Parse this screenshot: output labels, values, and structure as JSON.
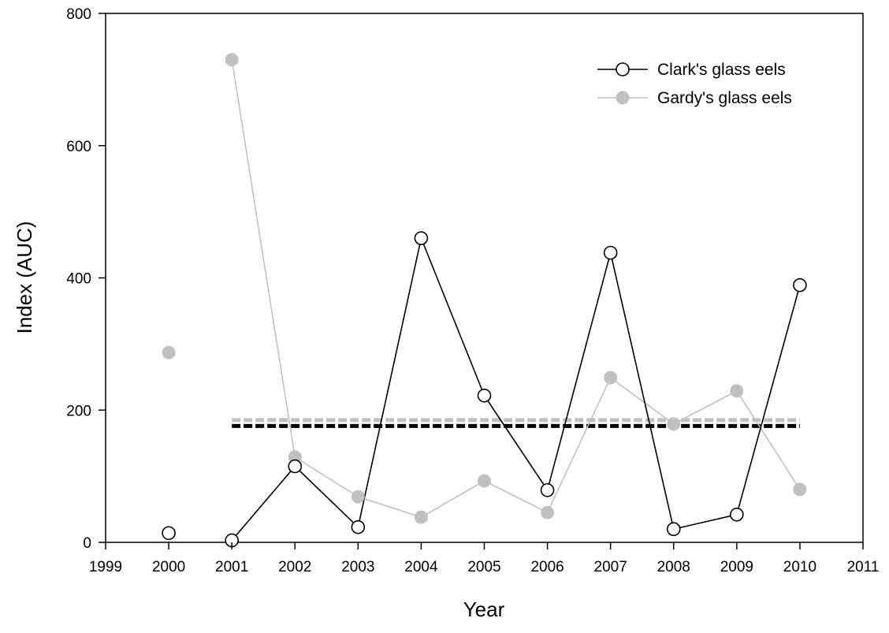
{
  "chart_data": {
    "type": "line",
    "title": "",
    "xlabel": "Year",
    "ylabel": "Index (AUC)",
    "xlim": [
      1999,
      2011
    ],
    "ylim": [
      0,
      800
    ],
    "x_ticks": [
      "1999",
      "2000",
      "2001",
      "2002",
      "2003",
      "2004",
      "2005",
      "2006",
      "2007",
      "2008",
      "2009",
      "2010",
      "2011"
    ],
    "y_ticks": [
      "0",
      "200",
      "400",
      "600",
      "800"
    ],
    "grid": false,
    "legend_position": "top-right",
    "series": [
      {
        "name": "Clark's glass eels",
        "marker": "open-circle",
        "color": "#000000",
        "points": [
          {
            "x": 2000,
            "y": 14,
            "connected": false
          },
          {
            "x": 2001,
            "y": 3
          },
          {
            "x": 2002,
            "y": 115
          },
          {
            "x": 2003,
            "y": 23
          },
          {
            "x": 2004,
            "y": 460
          },
          {
            "x": 2005,
            "y": 222
          },
          {
            "x": 2006,
            "y": 79
          },
          {
            "x": 2007,
            "y": 438
          },
          {
            "x": 2008,
            "y": 20
          },
          {
            "x": 2009,
            "y": 42
          },
          {
            "x": 2010,
            "y": 389
          }
        ],
        "mean_line": {
          "value": 176,
          "x_from": 2001,
          "x_to": 2010,
          "style": "dashed",
          "color": "#000000"
        }
      },
      {
        "name": "Gardy's glass eels",
        "marker": "filled-circle",
        "color": "#c0c0c0",
        "points": [
          {
            "x": 2000,
            "y": 287,
            "connected": false
          },
          {
            "x": 2001,
            "y": 730
          },
          {
            "x": 2002,
            "y": 129
          },
          {
            "x": 2003,
            "y": 69
          },
          {
            "x": 2004,
            "y": 38
          },
          {
            "x": 2005,
            "y": 93
          },
          {
            "x": 2006,
            "y": 45
          },
          {
            "x": 2007,
            "y": 249
          },
          {
            "x": 2008,
            "y": 179
          },
          {
            "x": 2009,
            "y": 229
          },
          {
            "x": 2010,
            "y": 80
          }
        ],
        "mean_line": {
          "value": 185,
          "x_from": 2001,
          "x_to": 2010,
          "style": "dashed",
          "color": "#c0c0c0"
        }
      }
    ]
  }
}
